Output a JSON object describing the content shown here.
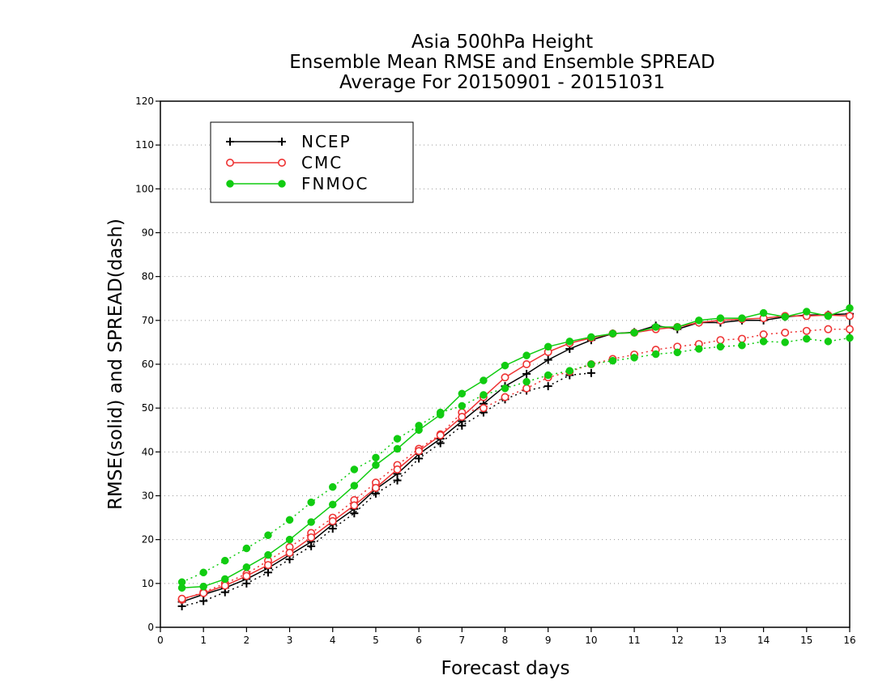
{
  "chart_data": {
    "type": "line",
    "title": [
      "Asia 500hPa Height",
      "Ensemble Mean RMSE and Ensemble SPREAD",
      "Average For 20150901 - 20151031"
    ],
    "xlabel": "Forecast days",
    "ylabel": "RMSE(solid) and SPREAD(dash)",
    "xlim": [
      0,
      16
    ],
    "ylim": [
      0,
      120
    ],
    "xticks": [
      0,
      1,
      2,
      3,
      4,
      5,
      6,
      7,
      8,
      9,
      10,
      11,
      12,
      13,
      14,
      15,
      16
    ],
    "yticks": [
      0,
      10,
      20,
      30,
      40,
      50,
      60,
      70,
      80,
      90,
      100,
      110,
      120
    ],
    "grid": "horizontal dotted",
    "legend_position": "top-left",
    "x": [
      0.5,
      1,
      1.5,
      2,
      2.5,
      3,
      3.5,
      4,
      4.5,
      5,
      5.5,
      6,
      6.5,
      7,
      7.5,
      8,
      8.5,
      9,
      9.5,
      10,
      10.5,
      11,
      11.5,
      12,
      12.5,
      13,
      13.5,
      14,
      14.5,
      15,
      15.5,
      16
    ],
    "series": [
      {
        "name": "NCEP",
        "color": "#000000",
        "marker": "plus",
        "rmse": [
          5.8,
          7.5,
          9.0,
          11.0,
          13.5,
          16.5,
          19.5,
          23.5,
          27.0,
          31.5,
          35.0,
          39.5,
          43.0,
          47.0,
          51.0,
          55.0,
          57.8,
          61.0,
          63.5,
          65.5,
          67.0,
          67.3,
          68.8,
          68.0,
          69.5,
          69.5,
          70.0,
          70.0,
          70.8,
          71.2,
          71.3,
          71.5
        ],
        "spread": [
          4.8,
          6.0,
          8.0,
          10.0,
          12.5,
          15.5,
          18.5,
          22.5,
          26.0,
          30.5,
          33.5,
          38.5,
          42.0,
          46.0,
          49.0,
          52.0,
          54.0,
          55.0,
          57.5,
          58.0
        ]
      },
      {
        "name": "CMC",
        "color": "#ee3333",
        "marker": "open-circle",
        "rmse": [
          6.5,
          7.8,
          9.5,
          11.7,
          14.2,
          17.0,
          20.5,
          24.2,
          27.8,
          31.8,
          36.0,
          40.2,
          43.8,
          48.0,
          52.5,
          57.0,
          60.0,
          62.8,
          64.8,
          66.0,
          67.0,
          67.2,
          68.0,
          68.5,
          69.5,
          70.0,
          70.3,
          70.5,
          71.0,
          71.0,
          71.2,
          71.0
        ],
        "spread": [
          6.3,
          8.0,
          10.0,
          12.2,
          15.2,
          18.3,
          21.5,
          25.0,
          29.0,
          33.0,
          37.0,
          40.7,
          44.0,
          49.0,
          50.0,
          52.5,
          54.5,
          57.0,
          58.3,
          60.0,
          61.2,
          62.2,
          63.3,
          64.0,
          64.6,
          65.5,
          65.8,
          66.8,
          67.2,
          67.6,
          68.0,
          68.0
        ]
      },
      {
        "name": "FNMOC",
        "color": "#11cc11",
        "marker": "filled-circle",
        "rmse": [
          9.0,
          9.3,
          11.0,
          13.7,
          16.5,
          20.0,
          24.0,
          28.0,
          32.3,
          37.0,
          40.7,
          45.0,
          48.5,
          53.3,
          56.3,
          59.7,
          62.0,
          64.0,
          65.2,
          66.2,
          67.0,
          67.2,
          68.5,
          68.5,
          70.0,
          70.5,
          70.5,
          71.7,
          70.8,
          72.0,
          71.0,
          72.8
        ],
        "spread": [
          10.3,
          12.5,
          15.2,
          18.0,
          21.0,
          24.5,
          28.5,
          32.0,
          36.0,
          38.7,
          43.0,
          46.0,
          49.0,
          50.5,
          53.0,
          54.5,
          56.0,
          57.5,
          58.5,
          60.0,
          60.8,
          61.5,
          62.3,
          62.7,
          63.5,
          64.0,
          64.3,
          65.2,
          65.0,
          65.8,
          65.2,
          66.0
        ]
      }
    ]
  }
}
